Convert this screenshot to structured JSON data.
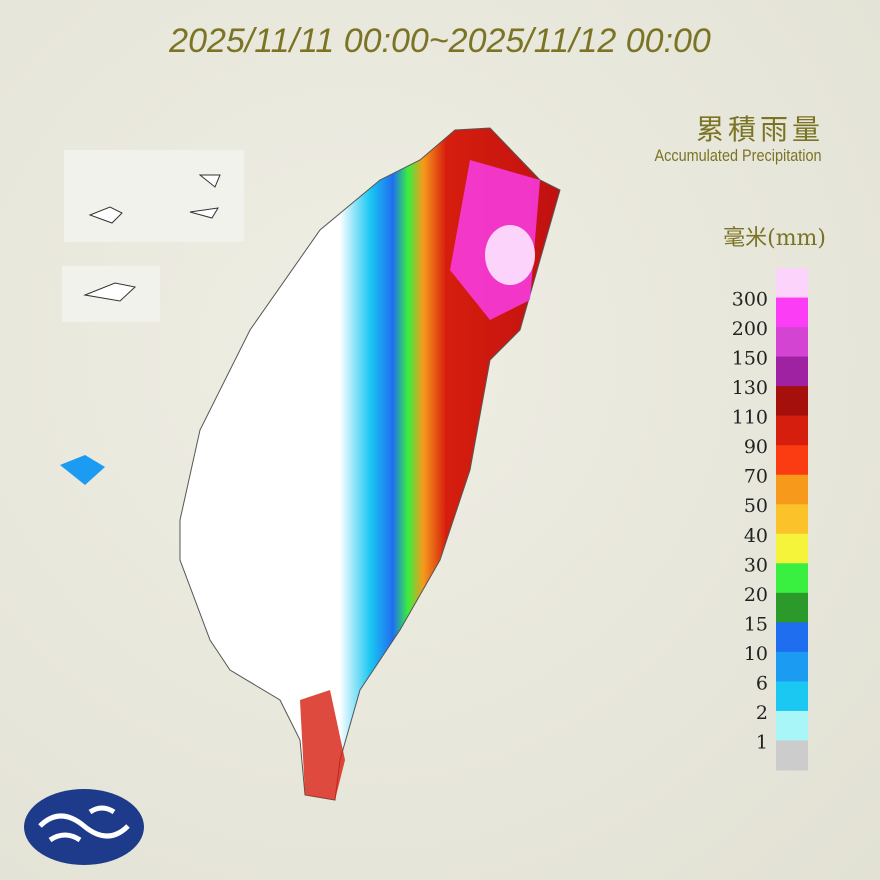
{
  "header": {
    "title": "2025/11/11 00:00~2025/11/12 00:00"
  },
  "legend": {
    "title": "累積雨量",
    "subtitle": "Accumulated Precipitation",
    "unit": "毫米(mm)",
    "labels": [
      "300",
      "200",
      "150",
      "130",
      "110",
      "90",
      "70",
      "50",
      "40",
      "30",
      "20",
      "15",
      "10",
      "6",
      "2",
      "1"
    ],
    "colors": [
      "#fbd3fb",
      "#fb3ef6",
      "#d444d2",
      "#9e22a2",
      "#a50f0c",
      "#d61e0e",
      "#fb3b12",
      "#f79a1c",
      "#fbc22a",
      "#f6f43a",
      "#39ef3f",
      "#2b9a2b",
      "#1f6ef0",
      "#1b9cf2",
      "#1bc8f2",
      "#a8f6f8",
      "#cccccc"
    ]
  }
}
